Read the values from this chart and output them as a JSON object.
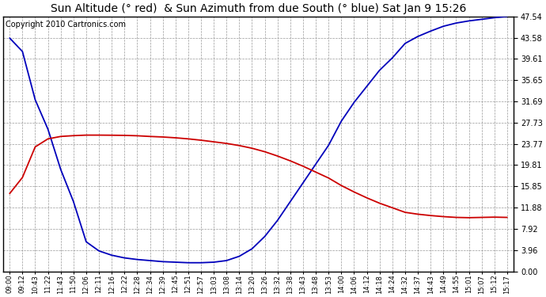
{
  "title": "Sun Altitude (° red)  & Sun Azimuth from due South (° blue) Sat Jan 9 15:26",
  "copyright": "Copyright 2010 Cartronics.com",
  "yticks": [
    0.0,
    3.96,
    7.92,
    11.88,
    15.85,
    19.81,
    23.77,
    27.73,
    31.69,
    35.65,
    39.61,
    43.58,
    47.54
  ],
  "ylim": [
    0.0,
    47.54
  ],
  "xtick_labels": [
    "09:00",
    "09:12",
    "10:43",
    "11:22",
    "11:43",
    "11:50",
    "12:06",
    "12:11",
    "12:16",
    "12:22",
    "12:28",
    "12:34",
    "12:39",
    "12:45",
    "12:51",
    "12:57",
    "13:03",
    "13:08",
    "13:14",
    "13:20",
    "13:26",
    "13:32",
    "13:38",
    "13:43",
    "13:48",
    "13:53",
    "14:00",
    "14:06",
    "14:12",
    "14:18",
    "14:24",
    "14:32",
    "14:37",
    "14:43",
    "14:49",
    "14:55",
    "15:01",
    "15:07",
    "15:12",
    "15:17"
  ],
  "blue_y": [
    43.5,
    41.0,
    32.0,
    26.5,
    19.0,
    13.0,
    5.5,
    3.8,
    3.0,
    2.5,
    2.2,
    2.0,
    1.8,
    1.7,
    1.6,
    1.6,
    1.7,
    2.0,
    2.8,
    4.2,
    6.5,
    9.5,
    13.0,
    16.5,
    20.0,
    23.5,
    28.0,
    31.5,
    34.5,
    37.5,
    39.8,
    42.5,
    43.8,
    44.8,
    45.7,
    46.3,
    46.7,
    47.0,
    47.3,
    47.54
  ],
  "red_y": [
    14.5,
    17.5,
    23.2,
    24.7,
    25.15,
    25.3,
    25.4,
    25.4,
    25.38,
    25.35,
    25.28,
    25.15,
    25.05,
    24.9,
    24.7,
    24.45,
    24.15,
    23.85,
    23.45,
    22.95,
    22.3,
    21.5,
    20.6,
    19.6,
    18.5,
    17.4,
    16.0,
    14.8,
    13.7,
    12.7,
    11.85,
    11.0,
    10.65,
    10.4,
    10.2,
    10.05,
    10.0,
    10.05,
    10.1,
    10.05
  ],
  "bg_color": "#ffffff",
  "plot_bg": "#ffffff",
  "blue_color": "#0000bb",
  "red_color": "#cc0000",
  "grid_color": "#999999",
  "title_fontsize": 10,
  "copyright_fontsize": 7
}
